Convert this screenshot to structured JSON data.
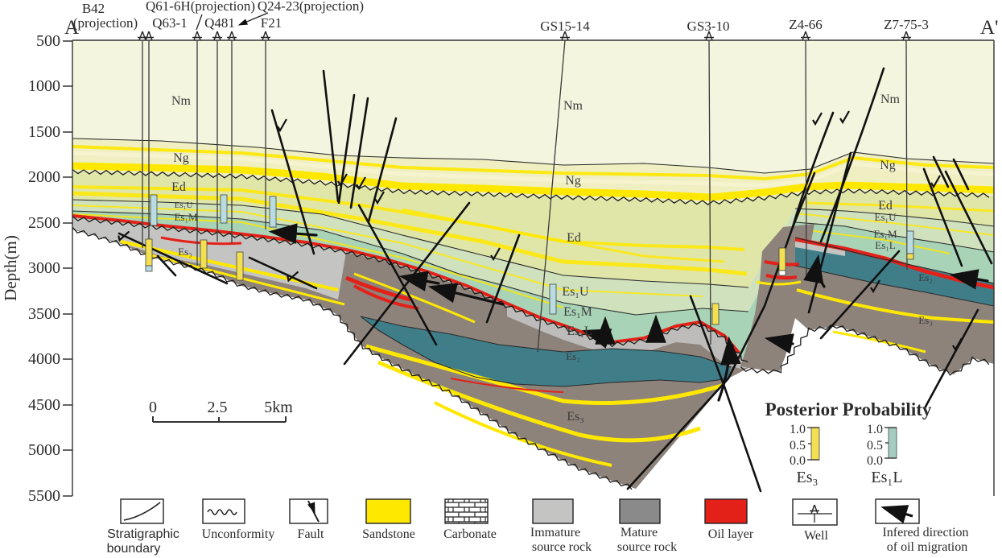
{
  "section": {
    "left_end": "A",
    "right_end": "A'"
  },
  "axis": {
    "label": "Depth(m)",
    "ticks": [
      "500",
      "1000",
      "1500",
      "2000",
      "2500",
      "3000",
      "3500",
      "4000",
      "4500",
      "5000",
      "5500"
    ]
  },
  "wells": {
    "b42_1": "B42",
    "b42_2": "(projection)",
    "q63": "Q63-1",
    "q61": "Q61-6H(projection)",
    "q481": "Q481",
    "q24": "Q24-23(projection)",
    "f21": "F21",
    "gs15": "GS15-14",
    "gs3": "GS3-10",
    "z4": "Z4-66",
    "z7": "Z7-75-3"
  },
  "strata": {
    "nm": "Nm",
    "ng": "Ng",
    "ed": "Ed",
    "es1u": "Es₁U",
    "es1m": "Es₁M",
    "es1l": "Es₁L",
    "es2": "Es₂",
    "es3": "Es₃"
  },
  "scalebar": {
    "zero": "0",
    "mid": "2.5",
    "end": "5km"
  },
  "posterior": {
    "title": "Posterior Probability",
    "max": "1.0",
    "mid": "0.5",
    "min": "0.0",
    "left_bar_label": "Es₃",
    "right_bar_label": "Es₁L"
  },
  "legend": {
    "items": [
      {
        "l1": "Stratigraphic",
        "l2": "boundary"
      },
      {
        "l1": "Unconformity",
        "l2": ""
      },
      {
        "l1": "Fault",
        "l2": ""
      },
      {
        "l1": "Sandstone",
        "l2": ""
      },
      {
        "l1": "Carbonate",
        "l2": ""
      },
      {
        "l1": "Immature",
        "l2": "source rock"
      },
      {
        "l1": "Mature",
        "l2": "source rock"
      },
      {
        "l1": "Oil layer",
        "l2": ""
      },
      {
        "l1": "Well",
        "l2": ""
      },
      {
        "l1": "Infered direction",
        "l2": "of oil migration"
      }
    ]
  },
  "colors": {
    "nm": "#f3f5df",
    "ng": "#efefc2",
    "ed": "#e0e6a8",
    "es1u": "#d0e2bd",
    "es1m": "#a9d3b6",
    "es2": "#3f7e89",
    "es3_gray": "#8d837b",
    "immature": "#c4c4c2",
    "mature": "#8a8a8a",
    "sandstone": "#ffe800",
    "oil": "#e32119",
    "prob_yellow": "#f2df52",
    "prob_teal": "#a5ccc1",
    "well_bar_teal": "#b9dce0"
  }
}
